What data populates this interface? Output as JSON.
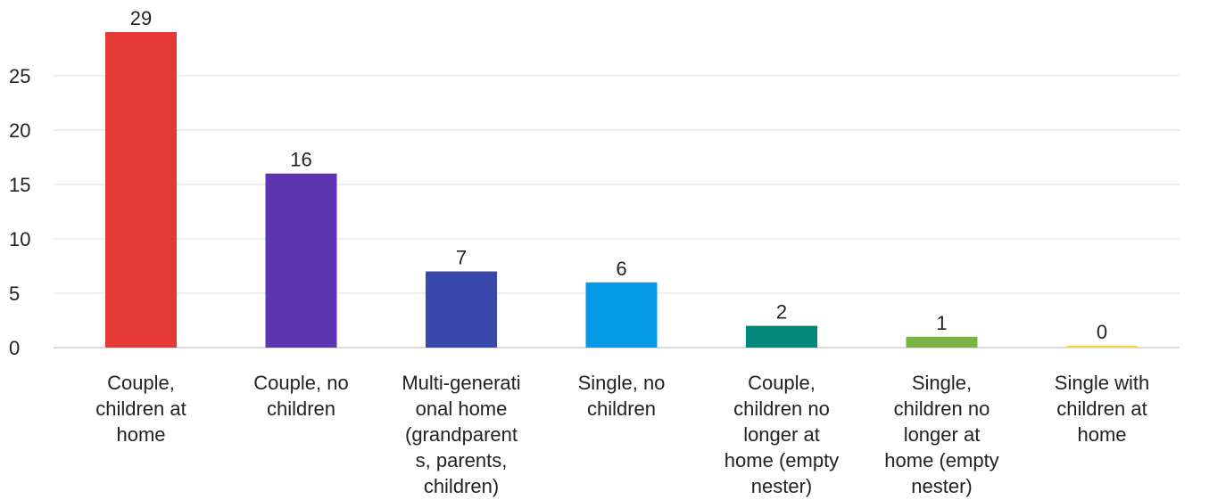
{
  "chart_data": {
    "type": "bar",
    "title": "",
    "xlabel": "",
    "ylabel": "",
    "categories": [
      [
        "Couple,",
        "children at",
        "home"
      ],
      [
        "Couple, no",
        "children"
      ],
      [
        "Multi-generati",
        "onal home",
        "(grandparent",
        "s, parents,",
        "children)"
      ],
      [
        "Single, no",
        "children"
      ],
      [
        "Couple,",
        "children no",
        "longer at",
        "home (empty",
        "nester)"
      ],
      [
        "Single,",
        "children no",
        "longer at",
        "home (empty",
        "nester)"
      ],
      [
        "Single with",
        "children at",
        "home"
      ]
    ],
    "values": [
      29,
      16,
      7,
      6,
      2,
      1,
      0
    ],
    "ylim": [
      0,
      29
    ],
    "yticks": [
      0,
      5,
      10,
      15,
      20,
      25
    ],
    "grid": true,
    "legend": "none",
    "colors": [
      "#e53935",
      "#5e35b1",
      "#3949ab",
      "#039be5",
      "#00897b",
      "#7cb342",
      "#fdd835"
    ]
  }
}
